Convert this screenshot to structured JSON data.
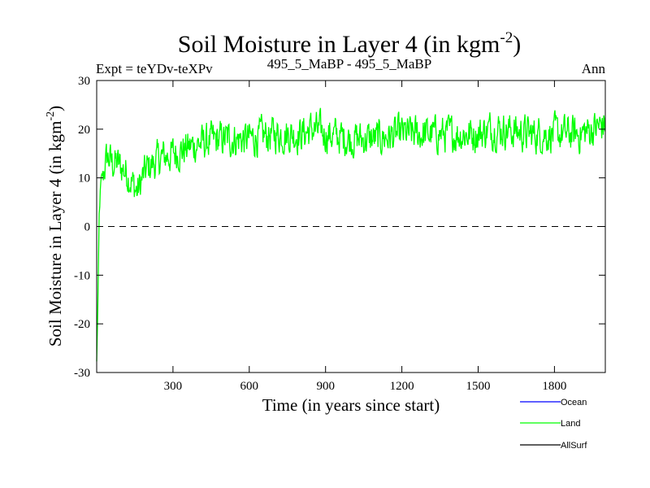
{
  "chart_data": {
    "type": "line",
    "title": "Soil Moisture in Layer 4 (in kgm",
    "title_sup": "-2",
    "title_close": ")",
    "expt_label": "Expt = teYDv-teXPv",
    "subtitle": "495_5_MaBP - 495_5_MaBP",
    "season": "Ann",
    "xlabel": "Time (in years since start)",
    "ylabel": "Soil Moisture in Layer 4 (in kgm",
    "ylabel_sup": "-2",
    "ylabel_close": ")",
    "xlim": [
      0,
      2000
    ],
    "ylim": [
      -30,
      30
    ],
    "xticks": [
      300,
      600,
      900,
      1200,
      1500,
      1800
    ],
    "xtick_labels": [
      "300",
      "600",
      "900",
      "1200",
      "1500",
      "1800"
    ],
    "yticks": [
      30,
      20,
      10,
      0,
      -10,
      -20,
      -30
    ],
    "ytick_labels": [
      "30",
      "20",
      "10",
      "0",
      "-10",
      "-20",
      "-30"
    ],
    "zero_line": true,
    "series": [
      {
        "name": "Land",
        "color": "#00ff00",
        "x": [
          0,
          5,
          10,
          15,
          20,
          30,
          40,
          50,
          60,
          80,
          100,
          120,
          140,
          160,
          180,
          200,
          250,
          300,
          350,
          400,
          500,
          600,
          700,
          800,
          850,
          900,
          1000,
          1100,
          1200,
          1300,
          1400,
          1500,
          1550,
          1600,
          1700,
          1800,
          1900,
          2000
        ],
        "values": [
          -28,
          -15,
          2,
          8,
          10,
          12,
          14,
          14,
          13,
          13,
          12,
          11,
          9,
          7,
          10,
          12,
          14,
          15,
          16,
          17,
          18,
          18,
          19,
          19,
          20,
          19,
          18,
          18,
          19,
          19,
          19,
          19,
          20,
          20,
          19,
          19,
          19,
          21
        ],
        "noise": 3.2
      },
      {
        "name": "Ocean",
        "color": "#0000ff",
        "x": [],
        "values": []
      },
      {
        "name": "AllSurf",
        "color": "#000000",
        "x": [],
        "values": []
      }
    ],
    "legend": [
      {
        "label": "Ocean",
        "color": "#0000ff"
      },
      {
        "label": "Land",
        "color": "#00ff00"
      },
      {
        "label": "AllSurf",
        "color": "#000000"
      }
    ],
    "legend_position": "bottom-right"
  }
}
